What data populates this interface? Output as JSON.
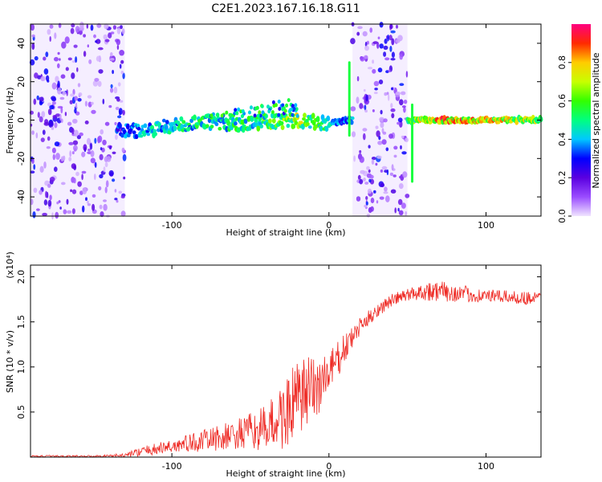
{
  "title": "C2E1.2023.167.16.18.G11",
  "chart_data": [
    {
      "type": "heatmap",
      "xlabel": "Height of straight line (km)",
      "ylabel": "Frequency (Hz)",
      "xlim": [
        -190,
        135
      ],
      "ylim": [
        -50,
        50
      ],
      "x_ticks": [
        -100,
        0,
        100
      ],
      "y_ticks": [
        -40,
        -20,
        0,
        20,
        40
      ],
      "grid": false,
      "colorbar": {
        "label": "Normalized spectral amplitude",
        "range": [
          0,
          1
        ],
        "ticks": [
          0.0,
          0.2,
          0.4,
          0.6,
          0.8
        ],
        "colors": [
          "#f0e4ff",
          "#9a4cff",
          "#5a00e0",
          "#0000ff",
          "#00c8ff",
          "#00ff80",
          "#33ff00",
          "#c8ff00",
          "#ffcc00",
          "#ff2a00",
          "#ff0080"
        ]
      },
      "noise_regions": [
        [
          -190,
          -130
        ],
        [
          15,
          50
        ]
      ],
      "signal_track": [
        {
          "x": -135,
          "freq": -6,
          "amp": 0.35
        },
        {
          "x": -120,
          "freq": -5.5,
          "amp": 0.45
        },
        {
          "x": -100,
          "freq": -3,
          "amp": 0.5
        },
        {
          "x": -80,
          "freq": -1,
          "amp": 0.55
        },
        {
          "x": -60,
          "freq": -2,
          "amp": 0.55
        },
        {
          "x": -40,
          "freq": -1,
          "amp": 0.6
        },
        {
          "x": -20,
          "freq": 0,
          "amp": 0.75
        },
        {
          "x": 0,
          "freq": -2,
          "amp": 0.5
        },
        {
          "x": 12,
          "freq": 0,
          "amp": 0.4
        },
        {
          "x": 55,
          "freq": 0,
          "amp": 0.7
        },
        {
          "x": 70,
          "freq": 0,
          "amp": 0.9
        },
        {
          "x": 100,
          "freq": 0,
          "amp": 0.85
        },
        {
          "x": 135,
          "freq": 0,
          "amp": 0.7
        }
      ]
    },
    {
      "type": "line",
      "xlabel": "Height of straight line (km)",
      "ylabel": "SNR (10 * v/v)",
      "y_scale_label": "(x10⁴)",
      "xlim": [
        -190,
        135
      ],
      "ylim": [
        0,
        2.13
      ],
      "x_ticks": [
        -100,
        0,
        100
      ],
      "y_ticks": [
        0.5,
        1.0,
        1.5,
        2.0
      ],
      "grid": false,
      "color": "#ee2a24",
      "envelope": {
        "x": [
          -190,
          -150,
          -130,
          -120,
          -100,
          -80,
          -60,
          -40,
          -30,
          -20,
          -10,
          0,
          10,
          20,
          30,
          40,
          50,
          60,
          70,
          80,
          90,
          100,
          110,
          120,
          135
        ],
        "center": [
          0.01,
          0.01,
          0.02,
          0.06,
          0.12,
          0.18,
          0.24,
          0.32,
          0.45,
          0.62,
          0.75,
          0.92,
          1.2,
          1.45,
          1.62,
          1.74,
          1.8,
          1.84,
          1.84,
          1.82,
          1.8,
          1.79,
          1.78,
          1.77,
          1.76
        ],
        "amplitude": [
          0.01,
          0.01,
          0.02,
          0.05,
          0.08,
          0.12,
          0.17,
          0.25,
          0.38,
          0.45,
          0.4,
          0.28,
          0.16,
          0.1,
          0.08,
          0.07,
          0.07,
          0.1,
          0.12,
          0.1,
          0.09,
          0.07,
          0.07,
          0.07,
          0.08
        ]
      }
    }
  ]
}
